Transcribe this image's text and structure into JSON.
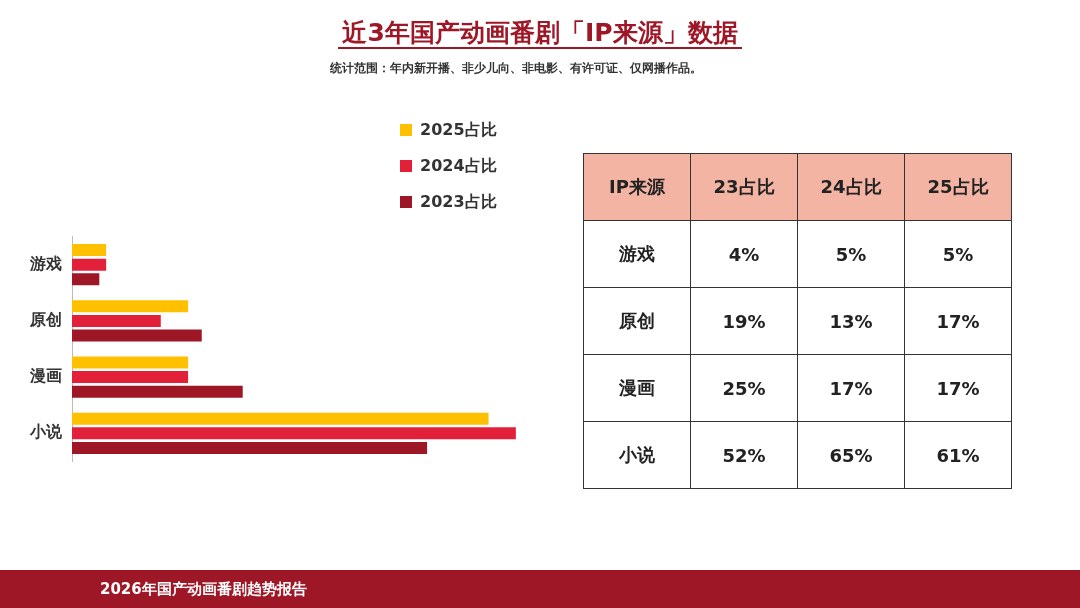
{
  "chart_data": {
    "type": "bar",
    "orientation": "horizontal",
    "title": "近3年国产动画番剧「IP来源」数据",
    "subtitle": "统计范围：年内新开播、非少儿向、非电影、有许可证、仅网播作品。",
    "categories": [
      "游戏",
      "原创",
      "漫画",
      "小说"
    ],
    "series": [
      {
        "name": "2025占比",
        "color": "#ffc000",
        "values": [
          5,
          17,
          17,
          61
        ],
        "value_labels": [
          "5%",
          "17%",
          "17%",
          "61%"
        ]
      },
      {
        "name": "2024占比",
        "color": "#e3203a",
        "values": [
          5,
          13,
          17,
          65
        ],
        "value_labels": [
          "5%",
          "13%",
          "17%",
          "65%"
        ]
      },
      {
        "name": "2023占比",
        "color": "#9e1727",
        "values": [
          4,
          19,
          25,
          52
        ],
        "value_labels": [
          "4%",
          "19%",
          "25%",
          "52%"
        ]
      }
    ],
    "legend": "top right",
    "grid": false,
    "annotations": [
      "IP来源",
      "23占比",
      "24占比",
      "25占比",
      "2026年国产动画番剧趋势报告"
    ]
  }
}
